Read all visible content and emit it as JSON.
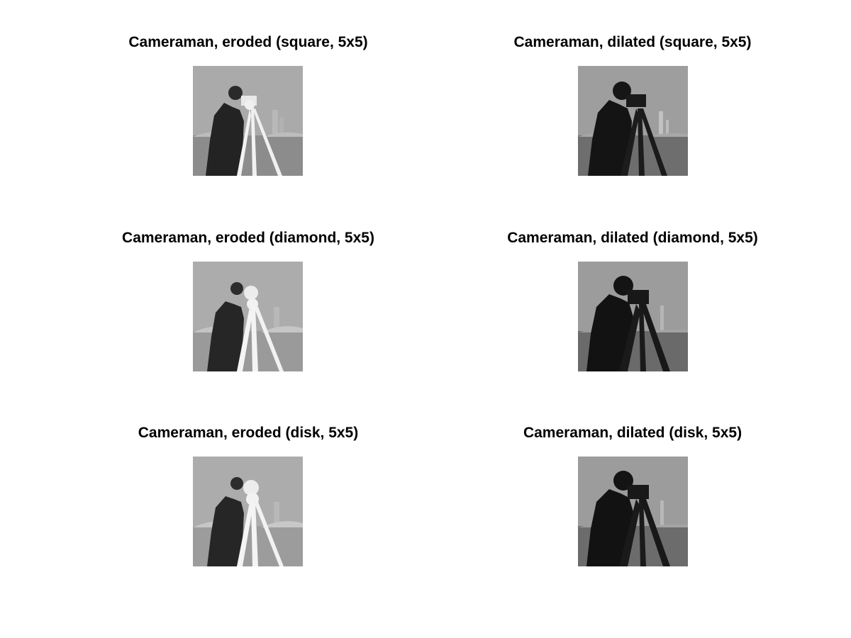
{
  "figure": {
    "panels": [
      {
        "title": "Cameraman, eroded (square, 5x5)",
        "operation": "eroded",
        "shape": "square"
      },
      {
        "title": "Cameraman, dilated (square, 5x5)",
        "operation": "dilated",
        "shape": "square"
      },
      {
        "title": "Cameraman, eroded (diamond, 5x5)",
        "operation": "eroded",
        "shape": "diamond"
      },
      {
        "title": "Cameraman, dilated (diamond, 5x5)",
        "operation": "dilated",
        "shape": "diamond"
      },
      {
        "title": "Cameraman, eroded (disk, 5x5)",
        "operation": "eroded",
        "shape": "disk"
      },
      {
        "title": "Cameraman, dilated (disk, 5x5)",
        "operation": "dilated",
        "shape": "disk"
      }
    ]
  }
}
